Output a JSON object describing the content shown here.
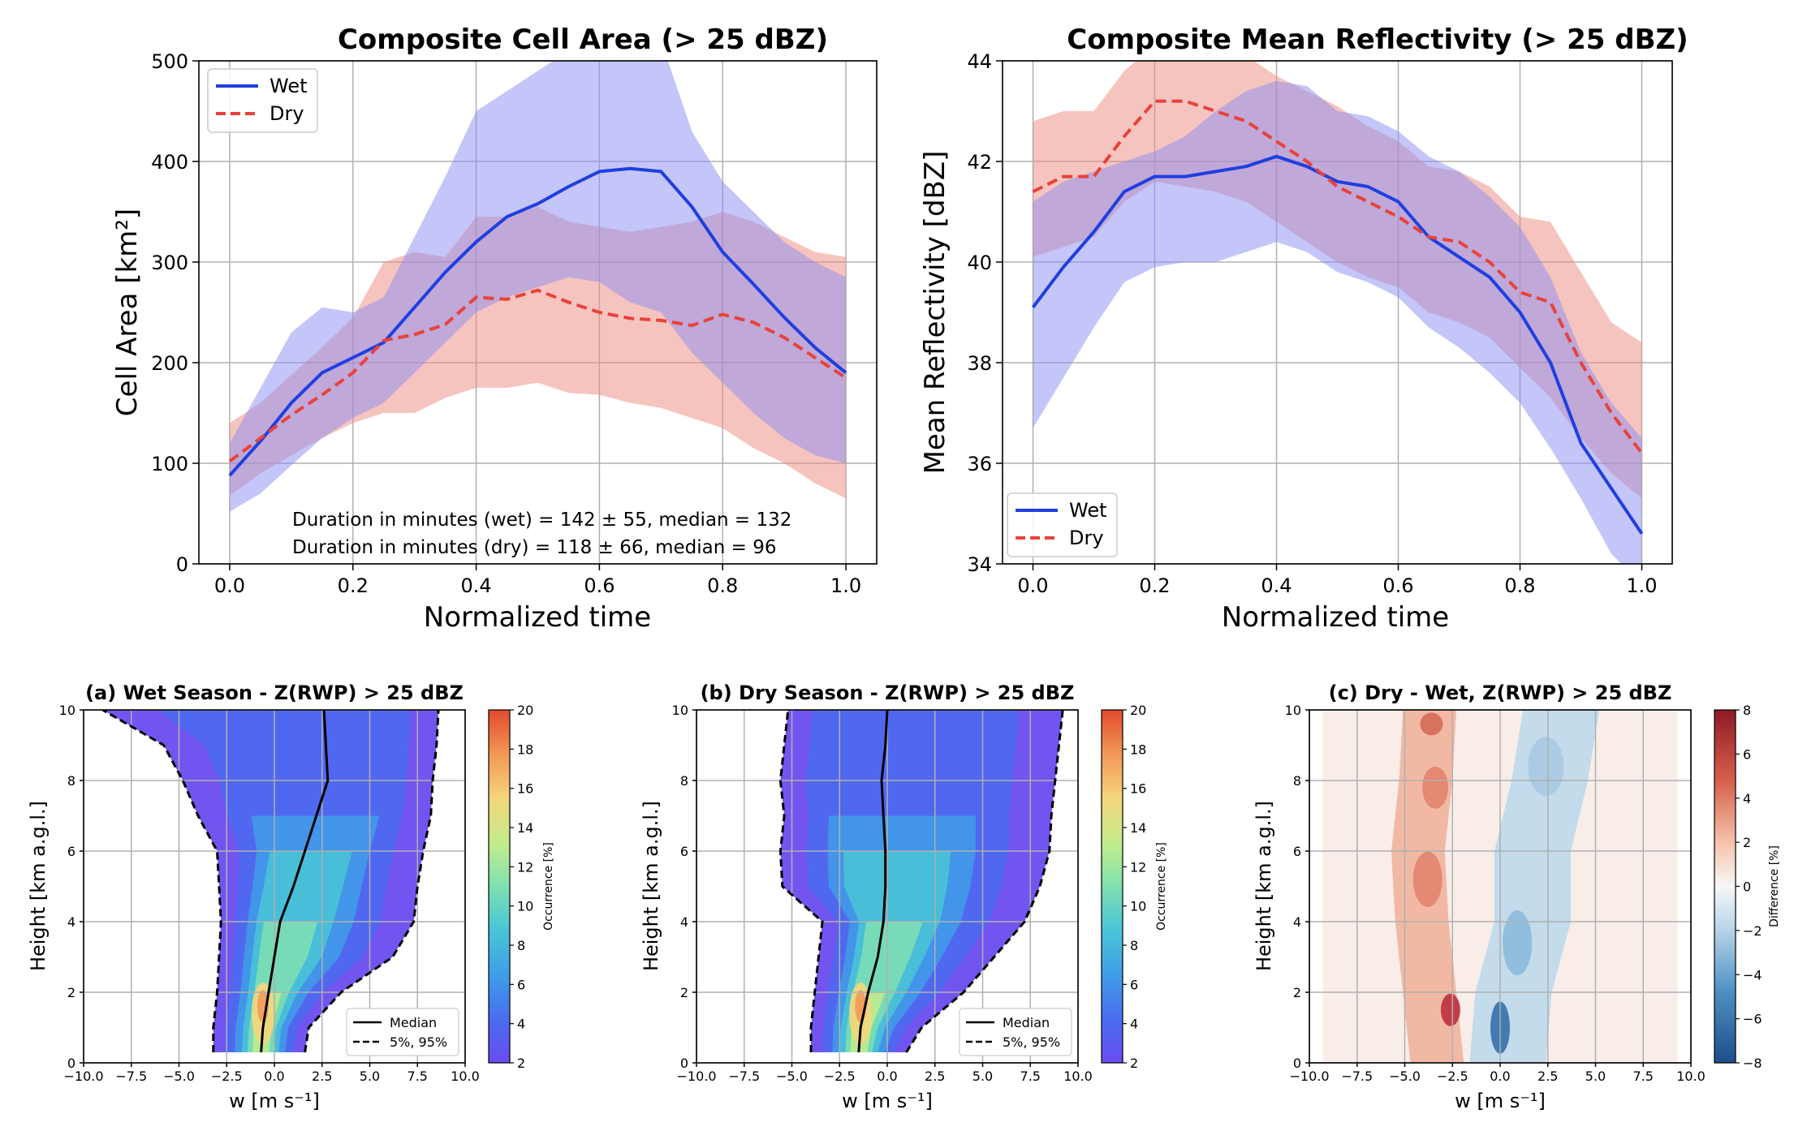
{
  "chart_data": [
    {
      "type": "line",
      "title": "Composite Cell Area (> 25 dBZ)",
      "xlabel": "Normalized time",
      "ylabel": "Cell Area [km²]",
      "xlim": [
        -0.05,
        1.05
      ],
      "ylim": [
        0,
        500
      ],
      "xticks": [
        "0.0",
        "0.2",
        "0.4",
        "0.6",
        "0.8",
        "1.0"
      ],
      "yticks": [
        "0",
        "100",
        "200",
        "300",
        "400",
        "500"
      ],
      "grid": true,
      "legend": "top-left",
      "x": [
        0.0,
        0.05,
        0.1,
        0.15,
        0.2,
        0.25,
        0.3,
        0.35,
        0.4,
        0.45,
        0.5,
        0.55,
        0.6,
        0.65,
        0.7,
        0.75,
        0.8,
        0.85,
        0.9,
        0.95,
        1.0
      ],
      "series": [
        {
          "name": "Wet",
          "color": "#1f3fe0",
          "style": "solid",
          "values": [
            88,
            122,
            160,
            190,
            205,
            220,
            255,
            290,
            320,
            345,
            358,
            375,
            390,
            393,
            390,
            355,
            310,
            278,
            245,
            215,
            190
          ],
          "band_low": [
            52,
            70,
            98,
            125,
            145,
            160,
            190,
            220,
            250,
            265,
            275,
            285,
            280,
            260,
            250,
            210,
            180,
            150,
            125,
            108,
            100
          ],
          "band_high": [
            120,
            175,
            230,
            255,
            250,
            265,
            325,
            385,
            450,
            470,
            490,
            510,
            520,
            520,
            520,
            430,
            380,
            350,
            320,
            300,
            285
          ]
        },
        {
          "name": "Dry",
          "color": "#e8423a",
          "style": "dashed",
          "values": [
            102,
            125,
            148,
            168,
            190,
            222,
            228,
            238,
            265,
            263,
            272,
            260,
            250,
            244,
            242,
            237,
            248,
            240,
            225,
            205,
            185
          ],
          "band_low": [
            68,
            90,
            108,
            125,
            140,
            150,
            150,
            165,
            175,
            175,
            180,
            170,
            168,
            160,
            155,
            145,
            135,
            115,
            100,
            80,
            65
          ],
          "band_high": [
            140,
            160,
            188,
            215,
            245,
            300,
            310,
            305,
            345,
            345,
            355,
            340,
            335,
            330,
            335,
            340,
            350,
            340,
            325,
            310,
            305
          ]
        }
      ],
      "annotations": [
        "Duration in minutes (wet) = 142 ± 55, median = 132",
        "Duration in minutes (dry) = 118 ± 66, median = 96"
      ]
    },
    {
      "type": "line",
      "title": "Composite Mean Reflectivity (> 25 dBZ)",
      "xlabel": "Normalized time",
      "ylabel": "Mean Reflectivity [dBZ]",
      "xlim": [
        -0.05,
        1.05
      ],
      "ylim": [
        34,
        44
      ],
      "xticks": [
        "0.0",
        "0.2",
        "0.4",
        "0.6",
        "0.8",
        "1.0"
      ],
      "yticks": [
        "34",
        "36",
        "38",
        "40",
        "42",
        "44"
      ],
      "grid": true,
      "legend": "bottom-left",
      "x": [
        0.0,
        0.05,
        0.1,
        0.15,
        0.2,
        0.25,
        0.3,
        0.35,
        0.4,
        0.45,
        0.5,
        0.55,
        0.6,
        0.65,
        0.7,
        0.75,
        0.8,
        0.85,
        0.9,
        0.95,
        1.0
      ],
      "series": [
        {
          "name": "Wet",
          "color": "#1f3fe0",
          "style": "solid",
          "values": [
            39.1,
            39.9,
            40.6,
            41.4,
            41.7,
            41.7,
            41.8,
            41.9,
            42.1,
            41.9,
            41.6,
            41.5,
            41.2,
            40.5,
            40.1,
            39.7,
            39.0,
            38.0,
            36.4,
            35.5,
            34.6
          ],
          "band_low": [
            36.7,
            37.7,
            38.7,
            39.6,
            39.9,
            40.0,
            40.0,
            40.2,
            40.4,
            40.2,
            39.8,
            39.6,
            39.3,
            38.7,
            38.3,
            37.8,
            37.2,
            36.3,
            35.3,
            34.2,
            33.6
          ],
          "band_high": [
            41.2,
            41.6,
            41.8,
            42.0,
            42.2,
            42.5,
            43.0,
            43.4,
            43.6,
            43.5,
            43.0,
            42.9,
            42.6,
            42.1,
            41.8,
            41.3,
            40.7,
            39.7,
            38.2,
            37.2,
            36.5
          ]
        },
        {
          "name": "Dry",
          "color": "#e8423a",
          "style": "dashed",
          "values": [
            41.4,
            41.7,
            41.7,
            42.5,
            43.2,
            43.2,
            43.0,
            42.8,
            42.4,
            42.0,
            41.5,
            41.2,
            40.9,
            40.5,
            40.4,
            40.0,
            39.4,
            39.2,
            38.0,
            37.0,
            36.2
          ],
          "band_low": [
            40.1,
            40.3,
            40.5,
            41.2,
            41.6,
            41.5,
            41.4,
            41.2,
            40.8,
            40.4,
            40.0,
            39.7,
            39.5,
            39.0,
            38.8,
            38.5,
            37.9,
            37.3,
            36.5,
            35.8,
            35.3
          ],
          "band_high": [
            42.8,
            43.0,
            43.0,
            43.8,
            44.3,
            44.5,
            44.3,
            44.1,
            43.7,
            43.4,
            43.1,
            42.7,
            42.4,
            41.9,
            41.8,
            41.5,
            40.9,
            40.8,
            39.8,
            38.8,
            38.4
          ]
        }
      ]
    },
    {
      "type": "heatmap",
      "title": "(a) Wet Season - Z(RWP) > 25 dBZ",
      "xlabel": "w [m s⁻¹]",
      "ylabel": "Height [km a.g.l.]",
      "xlim": [
        -10,
        10
      ],
      "ylim": [
        0,
        10
      ],
      "xticks": [
        "−10.0",
        "−7.5",
        "−5.0",
        "−2.5",
        "0.0",
        "2.5",
        "5.0",
        "7.5",
        "10.0"
      ],
      "yticks": [
        "0",
        "2",
        "4",
        "6",
        "8",
        "10"
      ],
      "colorbar": {
        "label": "Occurrence [%]",
        "ticks": [
          "2",
          "4",
          "6",
          "8",
          "10",
          "12",
          "14",
          "16",
          "18",
          "20"
        ],
        "range": [
          2,
          20
        ]
      },
      "legend": "bottom-right",
      "legend_entries": [
        "Median",
        "5%, 95%"
      ],
      "height": [
        0.3,
        1,
        2,
        3,
        4,
        5,
        6,
        7,
        8,
        9,
        10
      ],
      "median": [
        -0.7,
        -0.6,
        -0.3,
        0.0,
        0.3,
        1.0,
        1.6,
        2.2,
        2.8,
        2.7,
        2.6
      ],
      "p5": [
        -3.2,
        -3.2,
        -3.0,
        -2.9,
        -2.8,
        -2.9,
        -3.0,
        -4.0,
        -4.8,
        -5.8,
        -9.0
      ],
      "p95": [
        1.6,
        1.8,
        3.5,
        6.2,
        7.3,
        7.5,
        7.8,
        8.2,
        8.3,
        8.5,
        8.6
      ],
      "peak_occurrence": 18
    },
    {
      "type": "heatmap",
      "title": "(b) Dry Season - Z(RWP) > 25 dBZ",
      "xlabel": "w [m s⁻¹]",
      "ylabel": "Height [km a.g.l.]",
      "xlim": [
        -10,
        10
      ],
      "ylim": [
        0,
        10
      ],
      "xticks": [
        "−10.0",
        "−7.5",
        "−5.0",
        "−2.5",
        "0.0",
        "2.5",
        "5.0",
        "7.5",
        "10.0"
      ],
      "yticks": [
        "0",
        "2",
        "4",
        "6",
        "8",
        "10"
      ],
      "colorbar": {
        "label": "Occurrence [%]",
        "ticks": [
          "2",
          "4",
          "6",
          "8",
          "10",
          "12",
          "14",
          "16",
          "18",
          "20"
        ],
        "range": [
          2,
          20
        ]
      },
      "legend": "bottom-right",
      "legend_entries": [
        "Median",
        "5%, 95%"
      ],
      "height": [
        0.3,
        1,
        2,
        3,
        4,
        5,
        6,
        7,
        8,
        9,
        10
      ],
      "median": [
        -1.5,
        -1.4,
        -1.0,
        -0.5,
        -0.2,
        -0.1,
        -0.1,
        -0.2,
        -0.3,
        -0.1,
        0.0
      ],
      "p5": [
        -4.0,
        -4.0,
        -3.8,
        -3.6,
        -3.4,
        -5.5,
        -5.6,
        -5.4,
        -5.6,
        -5.4,
        -5.2
      ],
      "p95": [
        1.0,
        1.8,
        4.0,
        5.6,
        7.2,
        8.0,
        8.5,
        8.6,
        8.8,
        9.0,
        9.2
      ],
      "peak_occurrence": 18
    },
    {
      "type": "heatmap",
      "title": "(c) Dry - Wet, Z(RWP) > 25 dBZ",
      "xlabel": "w [m s⁻¹]",
      "ylabel": "Height [km a.g.l.]",
      "xlim": [
        -10,
        10
      ],
      "ylim": [
        0,
        10
      ],
      "xticks": [
        "−10.0",
        "−7.5",
        "−5.0",
        "−2.5",
        "0.0",
        "2.5",
        "5.0",
        "7.5",
        "10.0"
      ],
      "yticks": [
        "0",
        "2",
        "4",
        "6",
        "8",
        "10"
      ],
      "colorbar": {
        "label": "Difference [%]",
        "ticks": [
          "−8",
          "−6",
          "−4",
          "−2",
          "0",
          "2",
          "4",
          "6",
          "8"
        ],
        "range": [
          -8,
          8
        ]
      }
    }
  ]
}
